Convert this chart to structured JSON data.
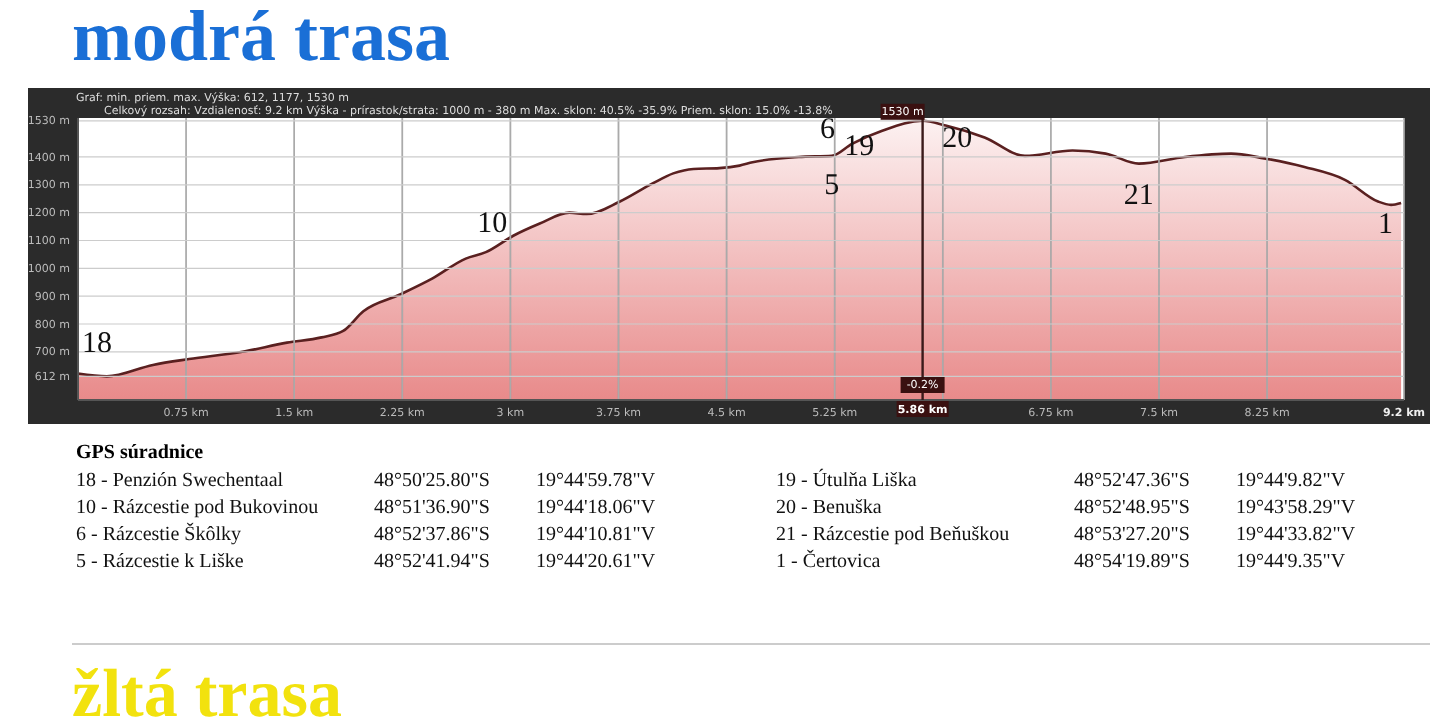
{
  "chart_data": {
    "type": "area",
    "title": "modrá trasa",
    "x": [
      0,
      0.2,
      0.52,
      0.77,
      1.14,
      1.45,
      1.69,
      1.84,
      1.98,
      2.23,
      2.46,
      2.69,
      2.83,
      3.02,
      3.2,
      3.41,
      3.53,
      3.76,
      3.99,
      4.13,
      4.27,
      4.45,
      4.59,
      4.68,
      5.0,
      5.23,
      5.37,
      5.58,
      5.86,
      6.02,
      6.29,
      6.57,
      6.9,
      7.13,
      7.36,
      7.68,
      8.0,
      8.23,
      8.51,
      8.79,
      9.02,
      9.11,
      9.18
    ],
    "series": [
      {
        "color": "#e88a8a",
        "values": [
          622,
          612,
          653,
          674,
          700,
          733,
          752,
          775,
          846,
          905,
          964,
          1035,
          1058,
          1117,
          1160,
          1200,
          1195,
          1240,
          1306,
          1341,
          1357,
          1360,
          1369,
          1381,
          1400,
          1404,
          1447,
          1494,
          1530,
          1513,
          1470,
          1404,
          1423,
          1412,
          1376,
          1400,
          1412,
          1395,
          1364,
          1318,
          1240,
          1228,
          1235
        ]
      }
    ],
    "xlim": [
      0,
      9.2
    ],
    "ylim": [
      527,
      1540
    ],
    "xticks": [
      {
        "value": 0.75,
        "label": "0.75 km"
      },
      {
        "value": 1.5,
        "label": "1.5 km"
      },
      {
        "value": 2.25,
        "label": "2.25 km"
      },
      {
        "value": 3,
        "label": "3 km"
      },
      {
        "value": 3.75,
        "label": "3.75 km"
      },
      {
        "value": 4.5,
        "label": "4.5 km"
      },
      {
        "value": 5.25,
        "label": "5.25 km"
      },
      {
        "value": 6,
        "label": null
      },
      {
        "value": 6.75,
        "label": "6.75 km"
      },
      {
        "value": 7.5,
        "label": "7.5 km"
      },
      {
        "value": 8.25,
        "label": "8.25 km"
      },
      {
        "value": 9.2,
        "label": "9.2 km"
      }
    ],
    "yticks": [
      {
        "value": 612,
        "label": "612 m"
      },
      {
        "value": 700,
        "label": "700 m"
      },
      {
        "value": 800,
        "label": "800 m"
      },
      {
        "value": 900,
        "label": "900 m"
      },
      {
        "value": 1000,
        "label": "1000 m"
      },
      {
        "value": 1100,
        "label": "1100 m"
      },
      {
        "value": 1200,
        "label": "1200 m"
      },
      {
        "value": 1300,
        "label": "1300 m"
      },
      {
        "value": 1400,
        "label": "1400 m"
      },
      {
        "value": 1530,
        "label": "1530 m"
      }
    ],
    "grid": true,
    "ref_lines": [
      {
        "axis": "x",
        "value": 5.86,
        "label": "5.86 km",
        "color": "#3a1a1a"
      }
    ],
    "annotations": [
      "Graf: min. priem. max.  Výška: 612, 1177, 1530 m",
      "Celkový rozsah:  Vzdialenosť: 9.2 km    Výška - prírastok/strata: 1000 m - 380 m    Max. sklon: 40.5% -35.9%    Priem. sklon: 15.0% -13.8%",
      "GPS súradnice",
      "18 - Penzión Swechentaal",
      "48°50'25.80\"S",
      "19°44'59.78\"V",
      "10 - Rázcestie pod Bukovinou",
      "48°51'36.90\"S",
      "19°44'18.06\"V",
      "6 - Rázcestie Škôlky",
      "48°52'37.86\"S",
      "19°44'10.81\"V",
      "5 - Rázcestie k Liške",
      "48°52'41.94\"S",
      "19°44'20.61\"V",
      "19 - Útulňa Liška",
      "48°52'47.36\"S",
      "19°44'9.82\"V",
      "20 - Benuška",
      "48°52'48.95\"S",
      "19°43'58.29\"V",
      "21 - Rázcestie pod Beňuškou",
      "48°53'27.20\"S",
      "19°44'33.82\"V",
      "1 - Čertovica",
      "48°54'19.89\"S",
      "19°44'9.35\"V",
      "žltá trasa",
      {
        "text": "18",
        "x": 0,
        "y": 622
      },
      {
        "text": "10",
        "x": 3.02,
        "y": 1117
      },
      {
        "text": "6",
        "x": 5.2,
        "y": 1404
      },
      {
        "text": "5",
        "x": 5.23,
        "y": 1404
      },
      {
        "text": "19",
        "x": 5.58,
        "y": 1494
      },
      {
        "text": "20",
        "x": 5.9,
        "y": 1528
      },
      {
        "text": "21",
        "x": 7.36,
        "y": 1376
      },
      {
        "text": "1",
        "x": 9.18,
        "y": 1235
      },
      {
        "text": "1530 m",
        "x": 5.86,
        "y": 1530
      },
      {
        "text": "-0.2%",
        "x": 5.86
      }
    ]
  }
}
